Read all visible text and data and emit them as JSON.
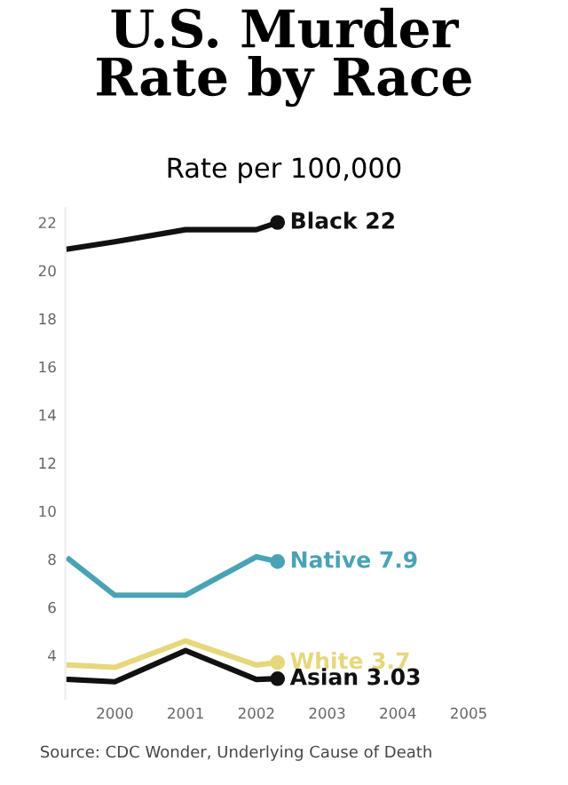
{
  "chart_data": {
    "type": "line",
    "title": "U.S. Murder\nRate by Race",
    "subtitle": "Rate per 100,000",
    "x": [
      1999.35,
      2000,
      2001,
      2002,
      2002.3
    ],
    "series": [
      {
        "color": "#111111",
        "values": [
          20.9,
          21.2,
          21.7,
          21.7,
          22
        ]
      },
      {
        "color": "#4aa3b5",
        "values": [
          8.0,
          6.5,
          6.5,
          8.1,
          7.9
        ]
      },
      {
        "color": "#e6d77c",
        "values": [
          3.6,
          3.5,
          4.6,
          3.6,
          3.7
        ]
      },
      {
        "color": "#111111",
        "values": [
          3.0,
          2.9,
          4.2,
          3.0,
          3.03
        ]
      }
    ],
    "annotations": [
      "Black 22",
      "Native 7.9",
      "White 3.7",
      "Asian 3.03",
      "Source: CDC Wonder, Underlying Cause of Death"
    ],
    "xlim": [
      1999.3,
      2005
    ],
    "ylim": [
      2.2,
      22.6
    ],
    "xticks": [
      2000,
      2001,
      2002,
      2003,
      2004,
      2005
    ],
    "yticks": [
      4,
      6,
      8,
      10,
      12,
      14,
      16,
      18,
      20,
      22
    ],
    "grid": false,
    "legend": false
  }
}
